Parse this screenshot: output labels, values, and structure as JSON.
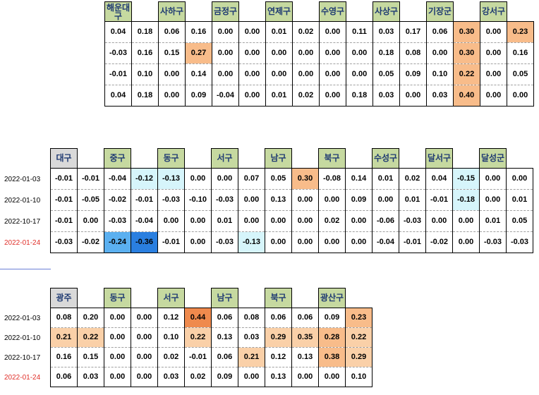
{
  "table1": {
    "headers": [
      "해운대구",
      "",
      "사하구",
      "",
      "금정구",
      "",
      "연제구",
      "",
      "수영구",
      "",
      "사상구",
      "",
      "기장군",
      "",
      "강서구",
      ""
    ],
    "header_styles": [
      "g",
      "e",
      "g",
      "e",
      "g",
      "e",
      "g",
      "e",
      "g",
      "e",
      "g",
      "e",
      "g",
      "e",
      "g",
      "e"
    ],
    "dates": [],
    "rows": [
      [
        "0.04",
        "0.18",
        "0.06",
        "0.16",
        "0.00",
        "0.00",
        "0.01",
        "0.02",
        "0.00",
        "0.11",
        "0.03",
        "0.17",
        "0.06",
        "0.30",
        "0.00",
        "0.23"
      ],
      [
        "-0.03",
        "0.16",
        "0.15",
        "0.27",
        "0.00",
        "0.00",
        "0.00",
        "0.00",
        "0.00",
        "0.00",
        "0.18",
        "0.08",
        "0.00",
        "0.30",
        "0.00",
        "0.16"
      ],
      [
        "-0.01",
        "0.10",
        "0.00",
        "0.14",
        "0.00",
        "0.00",
        "0.00",
        "0.00",
        "0.00",
        "0.00",
        "0.05",
        "0.09",
        "0.10",
        "0.22",
        "0.00",
        "0.05"
      ],
      [
        "0.04",
        "0.18",
        "0.00",
        "0.09",
        "-0.04",
        "0.00",
        "0.01",
        "0.02",
        "0.00",
        "0.18",
        "0.03",
        "0.00",
        "0.03",
        "0.40",
        "0.00",
        "0.00"
      ]
    ],
    "highlights": [
      [
        "",
        "",
        "",
        "",
        "",
        "",
        "",
        "",
        "",
        "",
        "",
        "",
        "",
        "o2",
        "",
        "o2"
      ],
      [
        "",
        "",
        "",
        "o2",
        "",
        "",
        "",
        "",
        "",
        "",
        "",
        "",
        "",
        "o2",
        "",
        ""
      ],
      [
        "",
        "",
        "",
        "",
        "",
        "",
        "",
        "",
        "",
        "",
        "",
        "",
        "",
        "o2",
        "",
        ""
      ],
      [
        "",
        "",
        "",
        "",
        "",
        "",
        "",
        "",
        "",
        "",
        "",
        "",
        "",
        "o2",
        "",
        ""
      ]
    ]
  },
  "table2": {
    "headers": [
      "대구",
      "",
      "중구",
      "",
      "동구",
      "",
      "서구",
      "",
      "남구",
      "",
      "북구",
      "",
      "수성구",
      "",
      "달서구",
      "",
      "달성군",
      ""
    ],
    "header_styles": [
      "gray",
      "e",
      "g",
      "e",
      "g",
      "e",
      "g",
      "e",
      "g",
      "e",
      "g",
      "e",
      "g",
      "e",
      "g",
      "e",
      "g",
      "e"
    ],
    "dates": [
      "2022-01-03",
      "2022-01-10",
      "2022-10-17",
      "2022-01-24"
    ],
    "date_red": [
      false,
      false,
      false,
      true
    ],
    "rows": [
      [
        "-0.01",
        "-0.01",
        "-0.04",
        "-0.12",
        "-0.13",
        "0.00",
        "0.00",
        "0.07",
        "0.05",
        "0.30",
        "-0.08",
        "0.14",
        "0.01",
        "0.02",
        "0.04",
        "-0.15",
        "0.00",
        "0.00"
      ],
      [
        "-0.01",
        "-0.05",
        "-0.02",
        "-0.01",
        "-0.03",
        "-0.10",
        "-0.03",
        "0.00",
        "0.13",
        "0.00",
        "0.00",
        "0.09",
        "0.00",
        "0.01",
        "-0.01",
        "-0.18",
        "0.00",
        "0.01"
      ],
      [
        "-0.01",
        "0.00",
        "-0.03",
        "-0.04",
        "0.00",
        "0.00",
        "0.01",
        "0.00",
        "0.00",
        "0.00",
        "0.02",
        "0.00",
        "-0.06",
        "-0.03",
        "0.00",
        "0.00",
        "0.01",
        "0.05"
      ],
      [
        "-0.03",
        "-0.02",
        "-0.24",
        "-0.36",
        "-0.01",
        "0.00",
        "-0.03",
        "-0.13",
        "0.00",
        "0.00",
        "0.00",
        "0.00",
        "-0.04",
        "-0.01",
        "-0.02",
        "0.00",
        "-0.03",
        "-0.03"
      ]
    ],
    "highlights": [
      [
        "",
        "",
        "",
        "c1",
        "c1",
        "",
        "",
        "",
        "",
        "o2",
        "",
        "",
        "",
        "",
        "",
        "c1",
        "",
        ""
      ],
      [
        "",
        "",
        "",
        "",
        "",
        "",
        "",
        "",
        "",
        "",
        "",
        "",
        "",
        "",
        "",
        "c1",
        "",
        ""
      ],
      [
        "",
        "",
        "",
        "",
        "",
        "",
        "",
        "",
        "",
        "",
        "",
        "",
        "",
        "",
        "",
        "",
        "",
        ""
      ],
      [
        "",
        "",
        "c2",
        "c3",
        "",
        "",
        "",
        "c1",
        "",
        "",
        "",
        "",
        "",
        "",
        "",
        "",
        "",
        ""
      ]
    ]
  },
  "table3": {
    "headers": [
      "광주",
      "",
      "동구",
      "",
      "서구",
      "",
      "남구",
      "",
      "북구",
      "",
      "광산구",
      ""
    ],
    "header_styles": [
      "gray",
      "e",
      "g",
      "e",
      "g",
      "e",
      "g",
      "e",
      "g",
      "e",
      "g",
      "e"
    ],
    "dates": [
      "2022-01-03",
      "2022-01-10",
      "2022-10-17",
      "2022-01-24"
    ],
    "date_red": [
      false,
      false,
      false,
      true
    ],
    "rows": [
      [
        "0.08",
        "0.20",
        "0.00",
        "0.00",
        "0.12",
        "0.44",
        "0.06",
        "0.08",
        "0.06",
        "0.06",
        "0.09",
        "0.23"
      ],
      [
        "0.21",
        "0.22",
        "0.00",
        "0.00",
        "0.10",
        "0.22",
        "0.13",
        "0.03",
        "0.29",
        "0.35",
        "0.28",
        "0.22"
      ],
      [
        "0.16",
        "0.15",
        "0.00",
        "0.00",
        "0.02",
        "-0.01",
        "0.06",
        "0.21",
        "0.12",
        "0.13",
        "0.38",
        "0.29"
      ],
      [
        "0.06",
        "0.03",
        "0.00",
        "0.00",
        "0.03",
        "0.02",
        "0.09",
        "0.00",
        "0.13",
        "0.00",
        "0.00",
        "0.10"
      ]
    ],
    "highlights": [
      [
        "",
        "",
        "",
        "",
        "",
        "o4",
        "",
        "",
        "",
        "",
        "",
        "o2"
      ],
      [
        "o1",
        "o1",
        "",
        "",
        "",
        "o1",
        "",
        "",
        "o1",
        "o1",
        "o2",
        "o1"
      ],
      [
        "",
        "",
        "",
        "",
        "",
        "",
        "",
        "o1",
        "",
        "",
        "o2",
        "o1"
      ],
      [
        "",
        "",
        "",
        "",
        "",
        "",
        "",
        "",
        "",
        "",
        "",
        ""
      ]
    ]
  }
}
